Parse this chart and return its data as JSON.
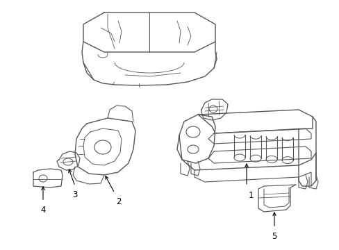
{
  "background_color": "#ffffff",
  "line_color": "#555555",
  "label_color": "#000000",
  "figsize": [
    4.89,
    3.6
  ],
  "dpi": 100,
  "lw_main": 0.9,
  "lw_detail": 0.7
}
